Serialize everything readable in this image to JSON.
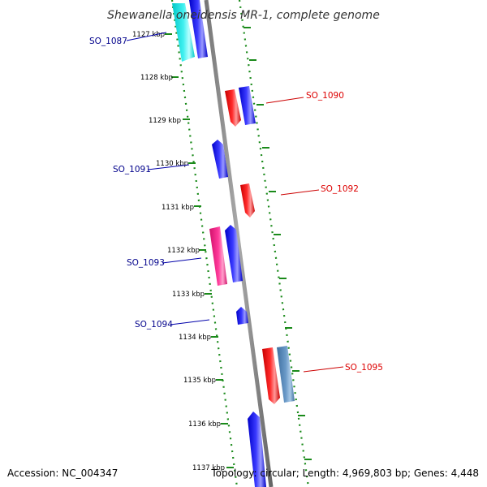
{
  "title": "Shewanella oneidensis MR-1, complete genome",
  "accession": "Accession: NC_004347",
  "summary": "Topology: circular; Length: 4,969,803 bp; Genes: 4,448",
  "ticks": [
    "1127 kbp",
    "1128 kbp",
    "1129 kbp",
    "1130 kbp",
    "1131 kbp",
    "1132 kbp",
    "1133 kbp",
    "1134 kbp",
    "1135 kbp",
    "1136 kbp",
    "1137 kbp"
  ],
  "genes": [
    {
      "id": "SO_1087",
      "side": "left",
      "color": "#00008b"
    },
    {
      "id": "SO_1090",
      "side": "right",
      "color": "#dd0000"
    },
    {
      "id": "SO_1091",
      "side": "left",
      "color": "#00008b"
    },
    {
      "id": "SO_1092",
      "side": "right",
      "color": "#dd0000"
    },
    {
      "id": "SO_1093",
      "side": "left",
      "color": "#00008b"
    },
    {
      "id": "SO_1094",
      "side": "left",
      "color": "#00008b"
    },
    {
      "id": "SO_1095",
      "side": "right",
      "color": "#dd0000"
    }
  ],
  "colors": {
    "backbone": "#8a8a8a",
    "dotted_track": "#1a8a1a",
    "forward": "#0000ee",
    "reverse": "#ee0000",
    "cyan": "#22e6e6",
    "magenta": "#ee2288",
    "steel": "#5a8ab8"
  }
}
